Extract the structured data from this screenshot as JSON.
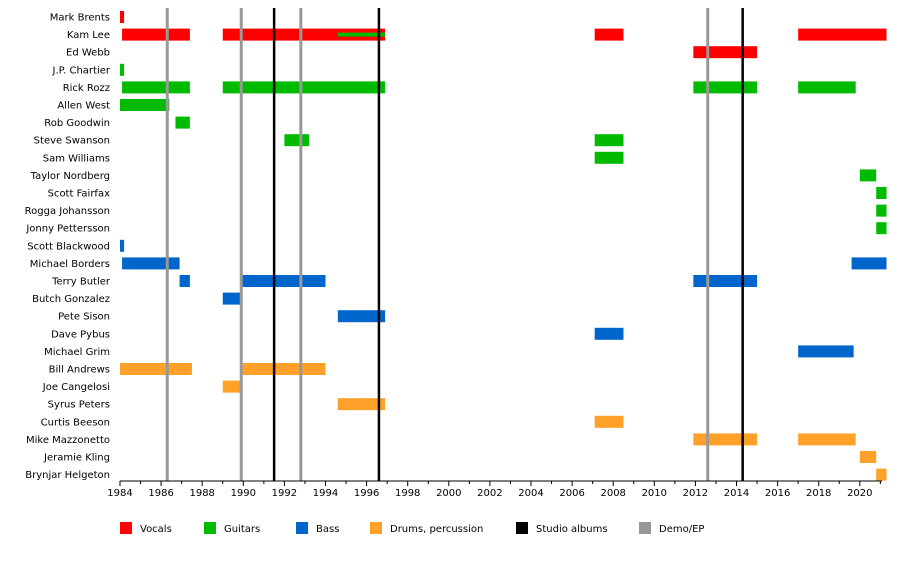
{
  "chart_data": {
    "type": "timeline",
    "title": "",
    "x_axis": {
      "start": 1984,
      "end": 2021.5,
      "ticks": [
        1984,
        1986,
        1988,
        1990,
        1992,
        1994,
        1996,
        1998,
        2000,
        2002,
        2004,
        2006,
        2008,
        2010,
        2012,
        2014,
        2016,
        2018,
        2020
      ],
      "tick_labels": [
        "1984",
        "1986",
        "1988",
        "1990",
        "1992",
        "1994",
        "1996",
        "1998",
        "2000",
        "2002",
        "2004",
        "2006",
        "2008",
        "2010",
        "2012",
        "2014",
        "2016",
        "2018",
        "2020"
      ]
    },
    "roles": [
      {
        "id": "vocals",
        "label": "Vocals",
        "color": "#ff0000"
      },
      {
        "id": "guitars",
        "label": "Guitars",
        "color": "#00bb00"
      },
      {
        "id": "bass",
        "label": "Bass",
        "color": "#0066cc"
      },
      {
        "id": "drums",
        "label": "Drums, percussion",
        "color": "#ffa028"
      }
    ],
    "release_markers": [
      {
        "type": "studio",
        "label": "Studio albums",
        "color": "#000000",
        "years": [
          1991.5,
          1996.6,
          2014.3
        ]
      },
      {
        "type": "demo",
        "label": "Demo/EP",
        "color": "#999999",
        "years": [
          1986.3,
          1989.9,
          1992.8,
          2012.6
        ]
      }
    ],
    "members": [
      {
        "name": "Mark Brents",
        "periods": [
          {
            "role": "vocals",
            "start": 1984.0,
            "end": 1984.2
          }
        ]
      },
      {
        "name": "Kam Lee",
        "periods": [
          {
            "role": "vocals",
            "start": 1984.1,
            "end": 1987.4
          },
          {
            "role": "vocals",
            "start": 1989.0,
            "end": 1996.9
          },
          {
            "role": "vocals",
            "start": 2007.1,
            "end": 2008.5
          },
          {
            "role": "vocals",
            "start": 2017.0,
            "end": 2021.3
          },
          {
            "role": "guitars",
            "start": 1994.6,
            "end": 1996.9,
            "secondary": true
          }
        ]
      },
      {
        "name": "Ed Webb",
        "periods": [
          {
            "role": "vocals",
            "start": 2011.9,
            "end": 2015.0
          }
        ]
      },
      {
        "name": "J.P. Chartier",
        "periods": [
          {
            "role": "guitars",
            "start": 1984.0,
            "end": 1984.2
          }
        ]
      },
      {
        "name": "Rick Rozz",
        "periods": [
          {
            "role": "guitars",
            "start": 1984.1,
            "end": 1987.4
          },
          {
            "role": "guitars",
            "start": 1989.0,
            "end": 1996.9
          },
          {
            "role": "guitars",
            "start": 2011.9,
            "end": 2015.0
          },
          {
            "role": "guitars",
            "start": 2017.0,
            "end": 2019.8
          }
        ]
      },
      {
        "name": "Allen West",
        "periods": [
          {
            "role": "guitars",
            "start": 1984.0,
            "end": 1986.4
          }
        ]
      },
      {
        "name": "Rob Goodwin",
        "periods": [
          {
            "role": "guitars",
            "start": 1986.7,
            "end": 1987.4
          }
        ]
      },
      {
        "name": "Steve Swanson",
        "periods": [
          {
            "role": "guitars",
            "start": 1992.0,
            "end": 1993.2
          },
          {
            "role": "guitars",
            "start": 2007.1,
            "end": 2008.5
          }
        ]
      },
      {
        "name": "Sam Williams",
        "periods": [
          {
            "role": "guitars",
            "start": 2007.1,
            "end": 2008.5
          }
        ]
      },
      {
        "name": "Taylor Nordberg",
        "periods": [
          {
            "role": "guitars",
            "start": 2020.0,
            "end": 2020.8
          }
        ]
      },
      {
        "name": "Scott Fairfax",
        "periods": [
          {
            "role": "guitars",
            "start": 2020.8,
            "end": 2021.3
          }
        ]
      },
      {
        "name": "Rogga Johansson",
        "periods": [
          {
            "role": "guitars",
            "start": 2020.8,
            "end": 2021.3
          }
        ]
      },
      {
        "name": "Jonny Pettersson",
        "periods": [
          {
            "role": "guitars",
            "start": 2020.8,
            "end": 2021.3
          }
        ]
      },
      {
        "name": "Scott Blackwood",
        "periods": [
          {
            "role": "bass",
            "start": 1984.0,
            "end": 1984.2
          }
        ]
      },
      {
        "name": "Michael Borders",
        "periods": [
          {
            "role": "bass",
            "start": 1984.1,
            "end": 1986.9
          },
          {
            "role": "bass",
            "start": 2019.6,
            "end": 2021.3
          }
        ]
      },
      {
        "name": "Terry Butler",
        "periods": [
          {
            "role": "bass",
            "start": 1986.9,
            "end": 1987.4
          },
          {
            "role": "bass",
            "start": 1989.9,
            "end": 1994.0
          },
          {
            "role": "bass",
            "start": 2011.9,
            "end": 2015.0
          }
        ]
      },
      {
        "name": "Butch Gonzalez",
        "periods": [
          {
            "role": "bass",
            "start": 1989.0,
            "end": 1989.9
          }
        ]
      },
      {
        "name": "Pete Sison",
        "periods": [
          {
            "role": "bass",
            "start": 1994.6,
            "end": 1996.9
          }
        ]
      },
      {
        "name": "Dave Pybus",
        "periods": [
          {
            "role": "bass",
            "start": 2007.1,
            "end": 2008.5
          }
        ]
      },
      {
        "name": "Michael Grim",
        "periods": [
          {
            "role": "bass",
            "start": 2017.0,
            "end": 2019.7
          }
        ]
      },
      {
        "name": "Bill Andrews",
        "periods": [
          {
            "role": "drums",
            "start": 1984.0,
            "end": 1987.5
          },
          {
            "role": "drums",
            "start": 1989.9,
            "end": 1994.0
          }
        ]
      },
      {
        "name": "Joe Cangelosi",
        "periods": [
          {
            "role": "drums",
            "start": 1989.0,
            "end": 1989.9
          }
        ]
      },
      {
        "name": "Syrus Peters",
        "periods": [
          {
            "role": "drums",
            "start": 1994.6,
            "end": 1996.9
          }
        ]
      },
      {
        "name": "Curtis Beeson",
        "periods": [
          {
            "role": "drums",
            "start": 2007.1,
            "end": 2008.5
          }
        ]
      },
      {
        "name": "Mike Mazzonetto",
        "periods": [
          {
            "role": "drums",
            "start": 2011.9,
            "end": 2015.0
          },
          {
            "role": "drums",
            "start": 2017.0,
            "end": 2019.8
          }
        ]
      },
      {
        "name": "Jeramie Kling",
        "periods": [
          {
            "role": "drums",
            "start": 2020.0,
            "end": 2020.8
          }
        ]
      },
      {
        "name": "Brynjar Helgeton",
        "periods": [
          {
            "role": "drums",
            "start": 2020.8,
            "end": 2021.3
          }
        ]
      }
    ],
    "legend": [
      {
        "label": "Vocals",
        "color": "#ff0000"
      },
      {
        "label": "Guitars",
        "color": "#00bb00"
      },
      {
        "label": "Bass",
        "color": "#0066cc"
      },
      {
        "label": "Drums, percussion",
        "color": "#ffa028"
      },
      {
        "label": "Studio albums",
        "color": "#000000"
      },
      {
        "label": "Demo/EP",
        "color": "#999999"
      }
    ]
  }
}
